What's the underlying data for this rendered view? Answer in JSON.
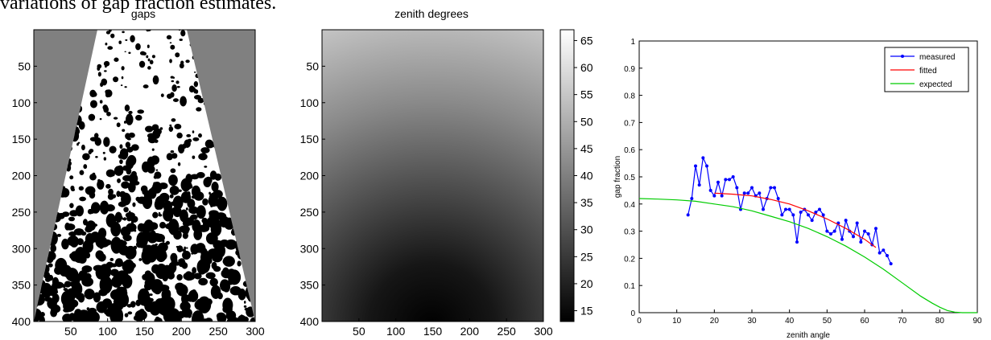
{
  "caption": "variations of gap fraction estimates.",
  "chart_data": [
    {
      "type": "heatmap",
      "title": "gaps",
      "xlim": [
        0,
        300
      ],
      "ylim": [
        400,
        0
      ],
      "xticks": [
        50,
        100,
        150,
        200,
        250,
        300
      ],
      "yticks": [
        50,
        100,
        150,
        200,
        250,
        300,
        350,
        400
      ],
      "colors": {
        "background": "#808080",
        "gap": "#ffffff",
        "canopy": "#000000"
      }
    },
    {
      "type": "heatmap",
      "title": "zenith degrees",
      "xlim": [
        0,
        300
      ],
      "ylim": [
        400,
        0
      ],
      "xticks": [
        50,
        100,
        150,
        200,
        250,
        300
      ],
      "yticks": [
        50,
        100,
        150,
        200,
        250,
        300,
        350,
        400
      ],
      "colorbar": {
        "range": [
          13,
          67
        ],
        "ticks": [
          15,
          20,
          25,
          30,
          35,
          40,
          45,
          50,
          55,
          60,
          65
        ]
      }
    },
    {
      "type": "line",
      "xlabel": "zenith angle",
      "ylabel": "gap fraction",
      "xlim": [
        0,
        90
      ],
      "ylim": [
        0,
        1
      ],
      "xticks": [
        0,
        10,
        20,
        30,
        40,
        50,
        60,
        70,
        80,
        90
      ],
      "yticks": [
        0,
        0.1,
        0.2,
        0.3,
        0.4,
        0.5,
        0.6,
        0.7,
        0.8,
        0.9,
        1
      ],
      "legend_position": "top-right",
      "series": [
        {
          "name": "measured",
          "color": "#0000ff",
          "marker": "dot",
          "x": [
            13,
            14,
            15,
            16,
            17,
            18,
            19,
            20,
            21,
            22,
            23,
            24,
            25,
            26,
            27,
            28,
            29,
            30,
            31,
            32,
            33,
            34,
            35,
            36,
            37,
            38,
            39,
            40,
            41,
            42,
            43,
            44,
            45,
            46,
            47,
            48,
            49,
            50,
            51,
            52,
            53,
            54,
            55,
            56,
            57,
            58,
            59,
            60,
            61,
            62,
            63,
            64,
            65,
            66,
            67
          ],
          "y": [
            0.36,
            0.42,
            0.54,
            0.47,
            0.57,
            0.54,
            0.45,
            0.43,
            0.48,
            0.43,
            0.49,
            0.49,
            0.5,
            0.46,
            0.38,
            0.44,
            0.44,
            0.46,
            0.43,
            0.44,
            0.38,
            0.42,
            0.46,
            0.46,
            0.42,
            0.36,
            0.38,
            0.38,
            0.36,
            0.26,
            0.37,
            0.38,
            0.36,
            0.34,
            0.37,
            0.38,
            0.36,
            0.3,
            0.29,
            0.3,
            0.33,
            0.27,
            0.34,
            0.3,
            0.28,
            0.33,
            0.26,
            0.3,
            0.29,
            0.25,
            0.31,
            0.22,
            0.23,
            0.21,
            0.18
          ]
        },
        {
          "name": "fitted",
          "color": "#ff0000",
          "x": [
            20,
            25,
            30,
            35,
            40,
            45,
            50,
            55,
            60,
            63
          ],
          "y": [
            0.44,
            0.436,
            0.43,
            0.417,
            0.4,
            0.375,
            0.345,
            0.31,
            0.27,
            0.24
          ]
        },
        {
          "name": "expected",
          "color": "#00cc00",
          "x": [
            0,
            5,
            10,
            15,
            20,
            25,
            30,
            35,
            40,
            45,
            50,
            55,
            60,
            65,
            70,
            75,
            78,
            80,
            82,
            84,
            86,
            88,
            90
          ],
          "y": [
            0.42,
            0.418,
            0.415,
            0.41,
            0.4,
            0.39,
            0.375,
            0.355,
            0.335,
            0.31,
            0.28,
            0.245,
            0.205,
            0.16,
            0.11,
            0.06,
            0.035,
            0.02,
            0.008,
            0.002,
            0,
            0,
            0
          ]
        }
      ]
    }
  ]
}
